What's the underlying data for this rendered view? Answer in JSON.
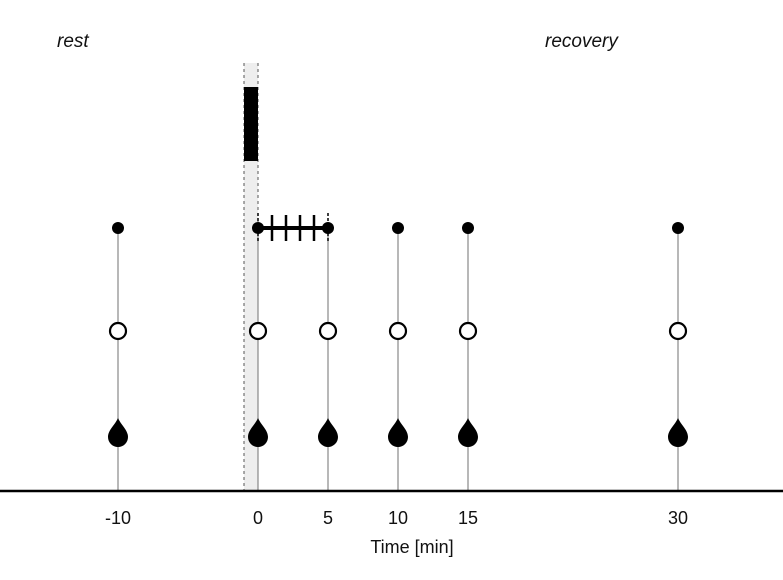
{
  "phases": {
    "rest": "rest",
    "recovery": "recovery"
  },
  "axis": {
    "title": "Time [min]",
    "ticks": [
      {
        "value": -10,
        "label": "-10"
      },
      {
        "value": 0,
        "label": "0"
      },
      {
        "value": 5,
        "label": "5"
      },
      {
        "value": 10,
        "label": "10"
      },
      {
        "value": 15,
        "label": "15"
      },
      {
        "value": 30,
        "label": "30"
      }
    ]
  },
  "timepoints": [
    -10,
    0,
    5,
    10,
    15,
    30
  ],
  "intervention_window": {
    "start": -1,
    "end": 0
  },
  "continuous_measure": {
    "start": 0,
    "end": 5,
    "tick_marks": [
      1,
      2,
      3,
      4
    ]
  },
  "colors": {
    "ink": "#000000",
    "stem": "#888888",
    "band": "#eeeeee"
  }
}
